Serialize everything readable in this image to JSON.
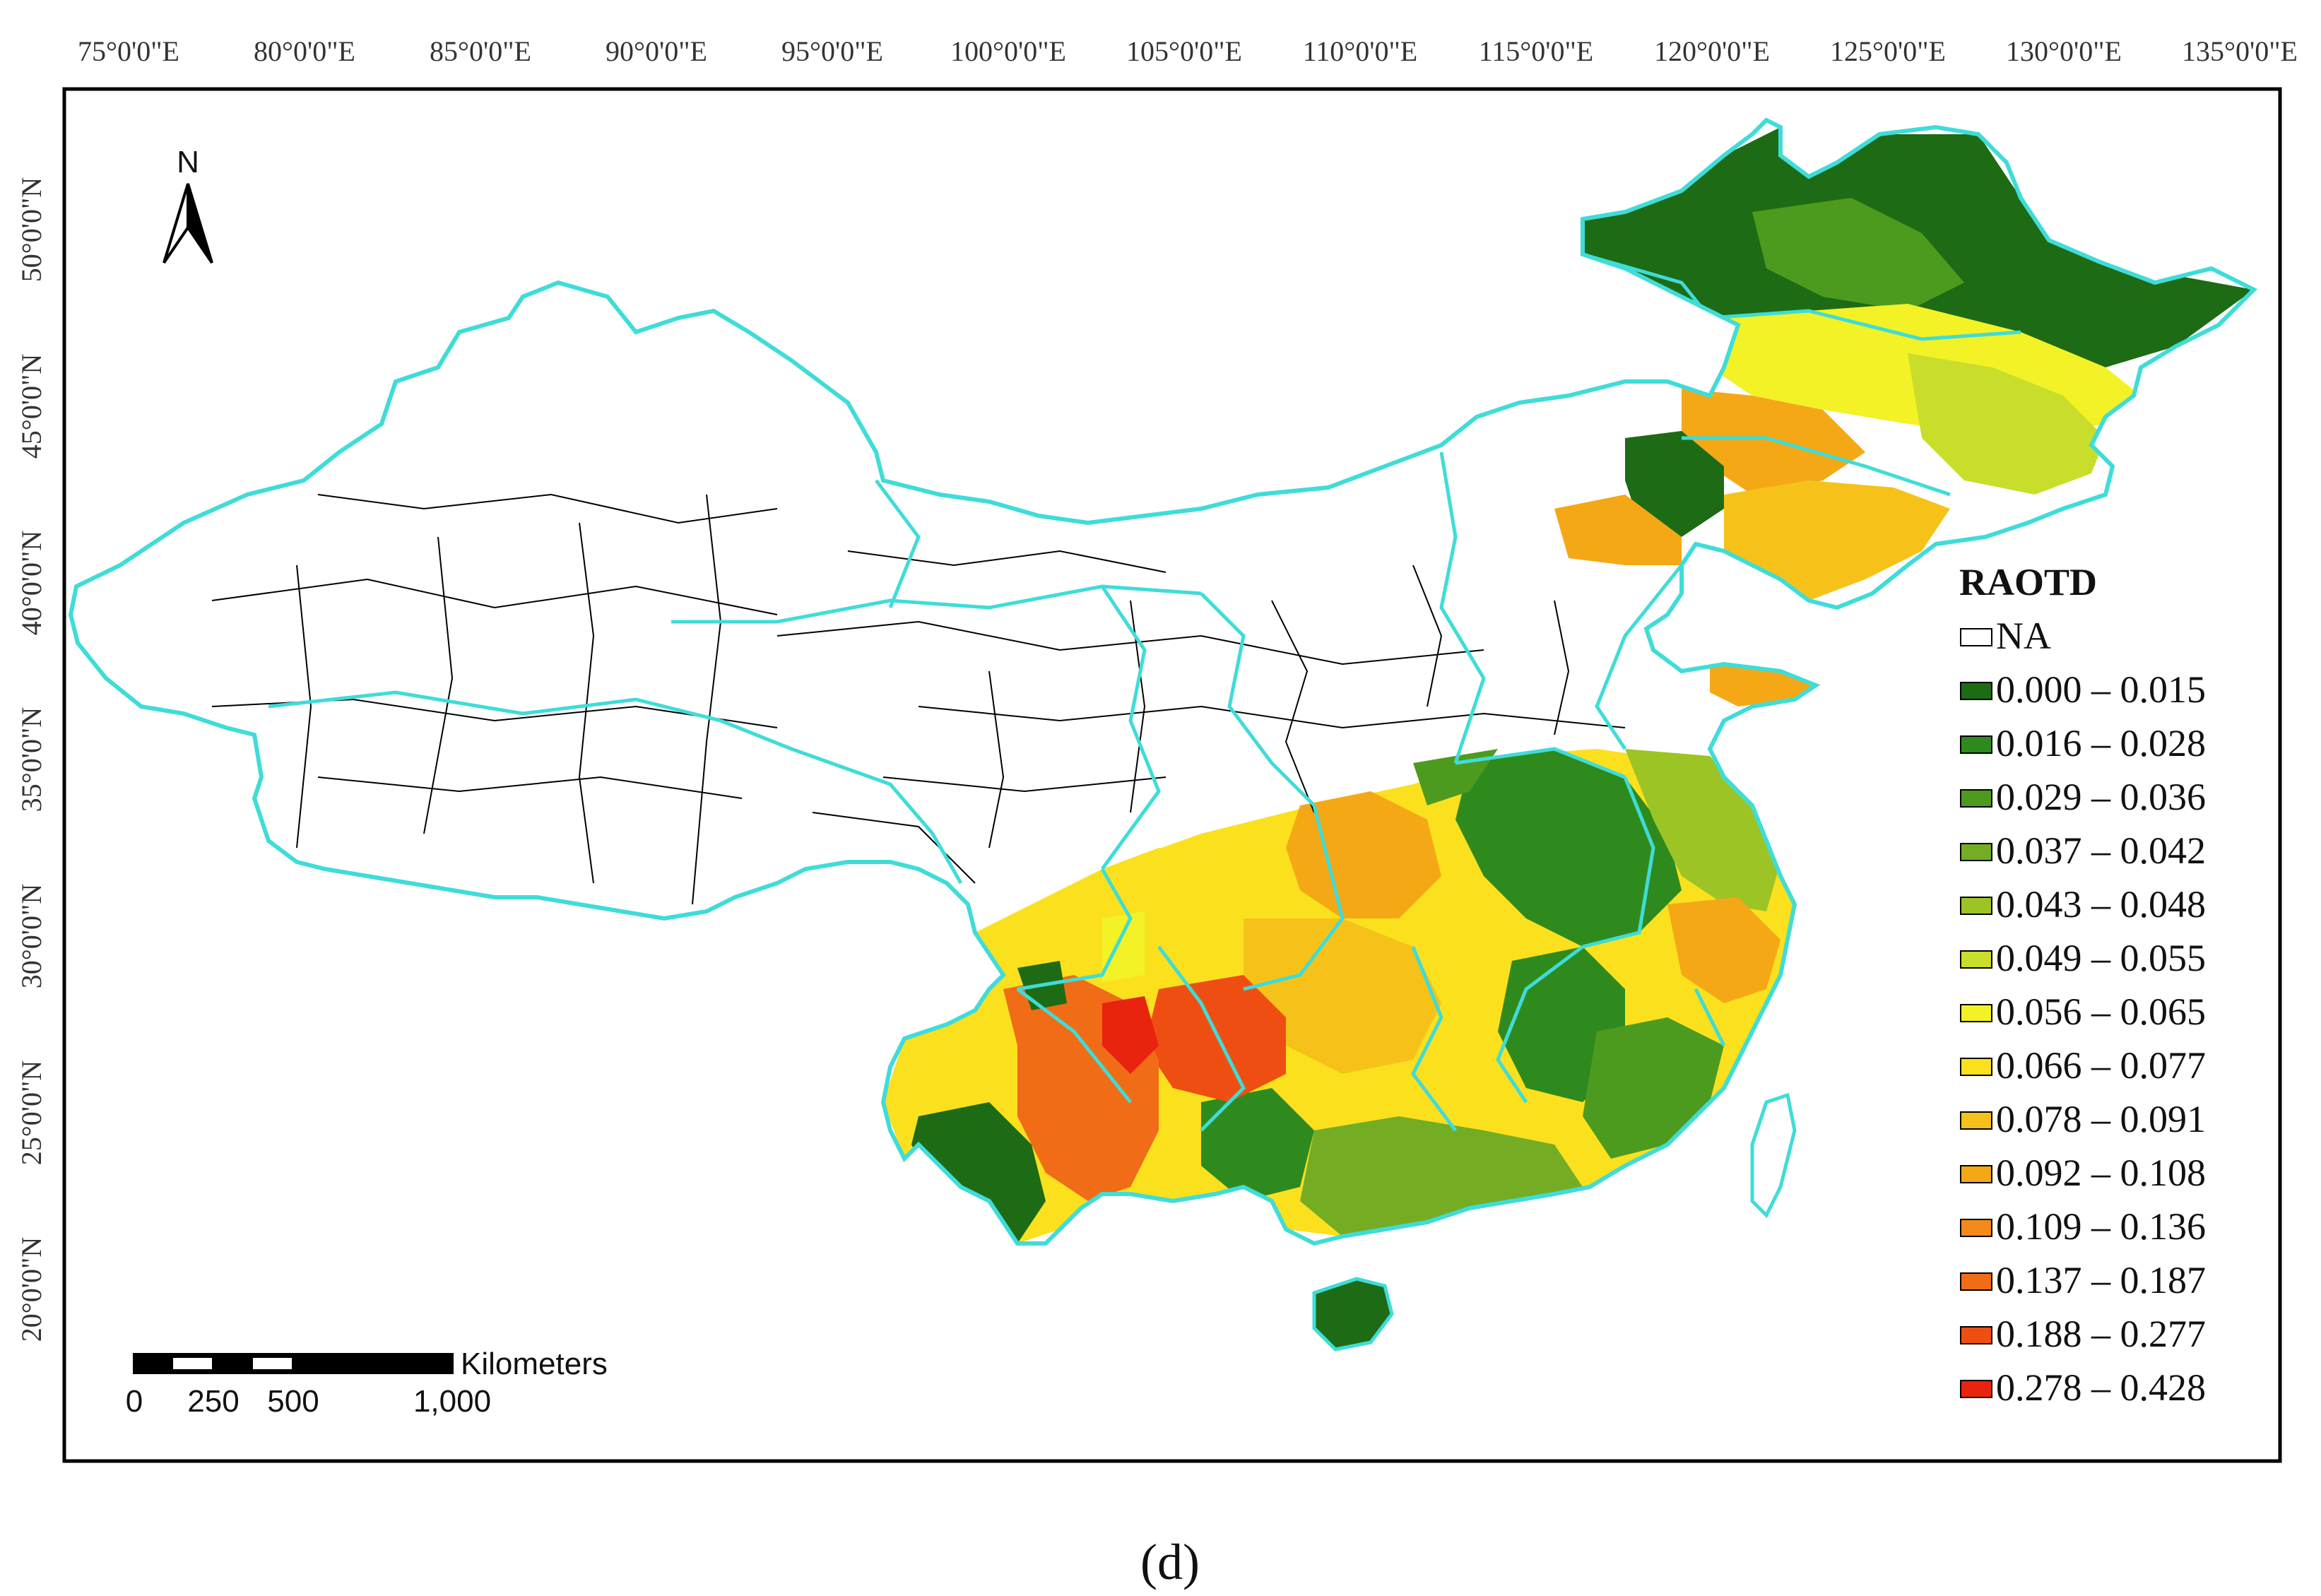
{
  "map": {
    "longitude_labels": [
      "75°0'0\"E",
      "80°0'0\"E",
      "85°0'0\"E",
      "90°0'0\"E",
      "95°0'0\"E",
      "100°0'0\"E",
      "105°0'0\"E",
      "110°0'0\"E",
      "115°0'0\"E",
      "120°0'0\"E",
      "125°0'0\"E",
      "130°0'0\"E",
      "135°0'0\"E"
    ],
    "latitude_labels": [
      "50°0'0\"N",
      "45°0'0\"N",
      "40°0'0\"N",
      "35°0'0\"N",
      "30°0'0\"N",
      "25°0'0\"N",
      "20°0'0\"N"
    ],
    "north_arrow": {
      "label": "N",
      "icon": "north-arrow-icon"
    },
    "scale_bar": {
      "unit": "Kilometers",
      "ticks": [
        "0",
        "250",
        "500",
        "1,000"
      ]
    },
    "legend": {
      "title": "RAOTD",
      "items": [
        {
          "label": "NA",
          "color": "#ffffff"
        },
        {
          "label": "0.000 – 0.015",
          "color": "#1d6b14"
        },
        {
          "label": "0.016 – 0.028",
          "color": "#2f8a1e"
        },
        {
          "label": "0.029 – 0.036",
          "color": "#4c9b1e"
        },
        {
          "label": "0.037 – 0.042",
          "color": "#74ad24"
        },
        {
          "label": "0.043 – 0.048",
          "color": "#9cc424"
        },
        {
          "label": "0.049 – 0.055",
          "color": "#c8de2a"
        },
        {
          "label": "0.056 – 0.065",
          "color": "#f2f226"
        },
        {
          "label": "0.066 – 0.077",
          "color": "#fbe01e"
        },
        {
          "label": "0.078 – 0.091",
          "color": "#f6c21a"
        },
        {
          "label": "0.092 – 0.108",
          "color": "#f5a816"
        },
        {
          "label": "0.109 – 0.136",
          "color": "#f48a1a"
        },
        {
          "label": "0.137 – 0.187",
          "color": "#f06c16"
        },
        {
          "label": "0.188 – 0.277",
          "color": "#ef4e12"
        },
        {
          "label": "0.278 – 0.428",
          "color": "#e8230e"
        }
      ]
    },
    "colors": {
      "province_border": "#3fdcd8",
      "county_line": "#000000",
      "frame": "#000000"
    }
  },
  "caption": "(d)"
}
